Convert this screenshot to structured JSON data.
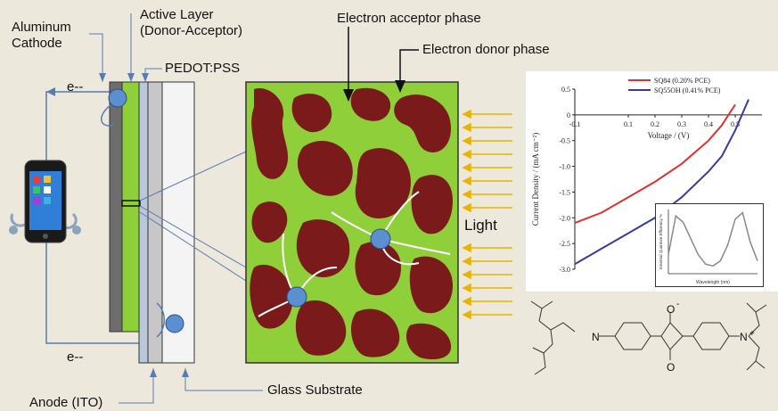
{
  "labels": {
    "aluminum_cathode": "Aluminum\nCathode",
    "active_layer": "Active Layer\n(Donor-Acceptor)",
    "pedot": "PEDOT:PSS",
    "electron_acceptor": "Electron acceptor phase",
    "electron_donor": "Electron donor phase",
    "e_top": "e--",
    "e_bottom": "e--",
    "light": "Light",
    "anode": "Anode (ITO)",
    "glass": "Glass Substrate"
  },
  "molecule": {
    "n_left": "N",
    "n_right": "N",
    "o_top": "O",
    "o_bottom": "O",
    "charge_top": "-",
    "charge_right": "+"
  },
  "colors": {
    "background": "#ece8dc",
    "acceptor_phase": "#7a1a1a",
    "donor_phase": "#8fcf3a",
    "electron": "#5b8fd0",
    "light_arrow": "#e8b400",
    "series_sq84": "#e03030",
    "series_sq55oh": "#3a3aa0"
  },
  "chart_data": {
    "type": "line",
    "xlabel": "Voltage / (V)",
    "ylabel": "Current Density / (mA cm⁻²)",
    "xlim": [
      -0.1,
      0.6
    ],
    "ylim": [
      -3.0,
      0.5
    ],
    "x_ticks": [
      "-0.1",
      "0.1",
      "0.2",
      "0.3",
      "0.4",
      "0.5"
    ],
    "y_ticks": [
      "0.5",
      "0",
      "-0.5",
      "-1.0",
      "-1.5",
      "-2.0",
      "-2.5",
      "-3.0"
    ],
    "series": [
      {
        "name": "SQ84 (0.20% PCE)",
        "x": [
          -0.1,
          0.0,
          0.1,
          0.2,
          0.3,
          0.4,
          0.45,
          0.5
        ],
        "y": [
          -2.1,
          -1.9,
          -1.6,
          -1.3,
          -0.95,
          -0.5,
          -0.2,
          0.2
        ]
      },
      {
        "name": "SQ55OH (0.41% PCE)",
        "x": [
          -0.1,
          0.0,
          0.1,
          0.2,
          0.3,
          0.4,
          0.45,
          0.5,
          0.55
        ],
        "y": [
          -2.9,
          -2.6,
          -2.3,
          -2.0,
          -1.6,
          -1.1,
          -0.8,
          -0.3,
          0.3
        ]
      }
    ],
    "inset": {
      "type": "line",
      "xlabel": "Wavelength (nm)",
      "ylabel": "External Quantum Efficiency %",
      "x": [
        0,
        1,
        2,
        3,
        4,
        5,
        6,
        7,
        8,
        9,
        10,
        11,
        12
      ],
      "y": [
        0.3,
        0.9,
        0.8,
        0.55,
        0.3,
        0.15,
        0.12,
        0.2,
        0.45,
        0.85,
        0.95,
        0.5,
        0.2
      ]
    }
  }
}
